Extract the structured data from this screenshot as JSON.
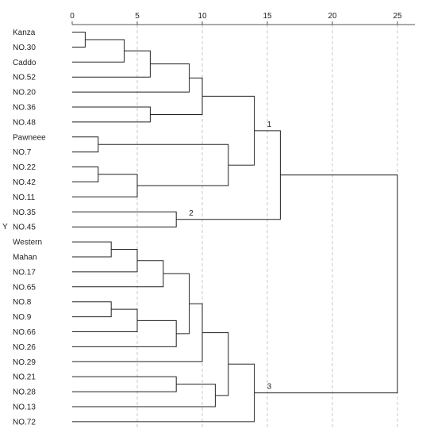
{
  "chart_data": {
    "type": "dendrogram",
    "title": "",
    "xlabel": "",
    "ylabel": "Y",
    "xlim": [
      0,
      26.5
    ],
    "xticks": [
      0,
      5,
      10,
      15,
      20,
      25
    ],
    "grid": true,
    "leaves": [
      "Kanza",
      "NO.30",
      "Caddo",
      "NO.52",
      "NO.20",
      "NO.36",
      "NO.48",
      "Pawneee",
      "NO.7",
      "NO.22",
      "NO.42",
      "NO.11",
      "NO.35",
      "NO.45",
      "Western",
      "Mahan",
      "NO.17",
      "NO.65",
      "NO.8",
      "NO.9",
      "NO.66",
      "NO.26",
      "NO.29",
      "NO.21",
      "NO.28",
      "NO.13",
      "NO.72"
    ],
    "merges": [
      {
        "left": "Kanza",
        "right": "NO.30",
        "height": 1.0,
        "id": "m1"
      },
      {
        "left": "m1",
        "right": "Caddo",
        "height": 4.0,
        "id": "m2"
      },
      {
        "left": "m2",
        "right": "NO.52",
        "height": 6.0,
        "id": "m3"
      },
      {
        "left": "m3",
        "right": "NO.20",
        "height": 9.0,
        "id": "m4"
      },
      {
        "left": "NO.36",
        "right": "NO.48",
        "height": 6.0,
        "id": "m5"
      },
      {
        "left": "m4",
        "right": "m5",
        "height": 10.0,
        "id": "m6"
      },
      {
        "left": "Pawneee",
        "right": "NO.7",
        "height": 2.0,
        "id": "m7"
      },
      {
        "left": "NO.22",
        "right": "NO.42",
        "height": 2.0,
        "id": "m8"
      },
      {
        "left": "m8",
        "right": "NO.11",
        "height": 5.0,
        "id": "m9"
      },
      {
        "left": "m7",
        "right": "m9",
        "height": 12.0,
        "id": "m10"
      },
      {
        "left": "m6",
        "right": "m10",
        "height": 14.0,
        "id": "m11"
      },
      {
        "left": "NO.35",
        "right": "NO.45",
        "height": 8.0,
        "id": "m12"
      },
      {
        "left": "m11",
        "right": "m12",
        "height": 16.0,
        "id": "m13"
      },
      {
        "left": "Western",
        "right": "Mahan",
        "height": 3.0,
        "id": "m14"
      },
      {
        "left": "m14",
        "right": "NO.17",
        "height": 5.0,
        "id": "m15"
      },
      {
        "left": "m15",
        "right": "NO.65",
        "height": 7.0,
        "id": "m16"
      },
      {
        "left": "NO.8",
        "right": "NO.9",
        "height": 3.0,
        "id": "m17"
      },
      {
        "left": "m17",
        "right": "NO.66",
        "height": 5.0,
        "id": "m18"
      },
      {
        "left": "m18",
        "right": "NO.26",
        "height": 8.0,
        "id": "m19"
      },
      {
        "left": "m16",
        "right": "m19",
        "height": 9.0,
        "id": "m20"
      },
      {
        "left": "m20",
        "right": "NO.29",
        "height": 10.0,
        "id": "m21"
      },
      {
        "left": "NO.21",
        "right": "NO.28",
        "height": 8.0,
        "id": "m22"
      },
      {
        "left": "m22",
        "right": "NO.13",
        "height": 11.0,
        "id": "m23"
      },
      {
        "left": "m21",
        "right": "m23",
        "height": 12.0,
        "id": "m24"
      },
      {
        "left": "m24",
        "right": "NO.72",
        "height": 14.0,
        "id": "m25"
      },
      {
        "left": "m13",
        "right": "m25",
        "height": 25.0,
        "id": "m26"
      }
    ],
    "annotations": [
      {
        "text": "1",
        "node": "m11"
      },
      {
        "text": "2",
        "node": "m12"
      },
      {
        "text": "3",
        "node": "m25"
      }
    ]
  }
}
